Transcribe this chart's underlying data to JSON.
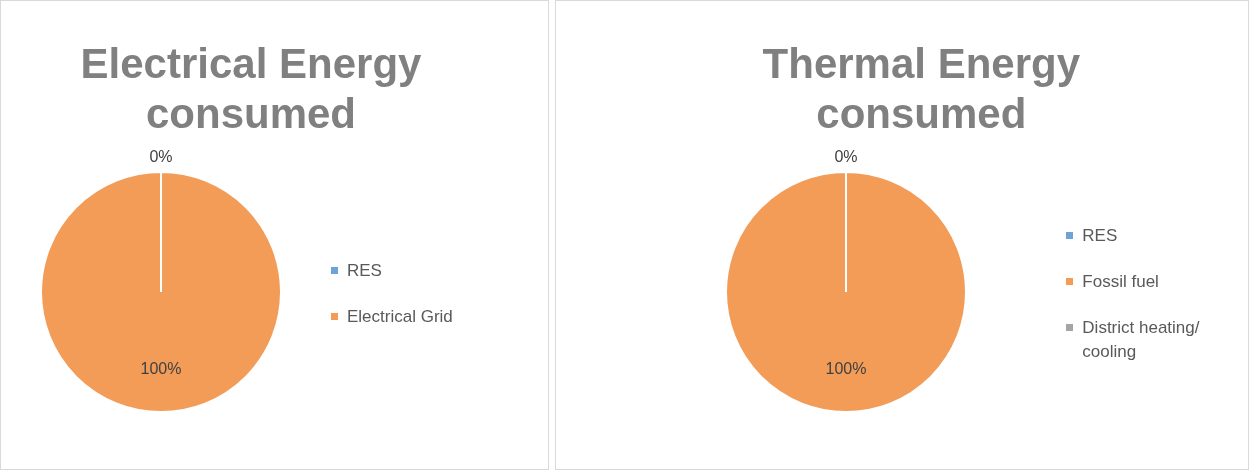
{
  "chart_data": [
    {
      "type": "pie",
      "title": "Electrical Energy consumed",
      "categories": [
        "RES",
        "Electrical Grid"
      ],
      "values": [
        0,
        100
      ],
      "colors": [
        "#6fa3d8",
        "#f29c58"
      ],
      "value_labels": [
        "0%",
        "100%"
      ],
      "legend": "right"
    },
    {
      "type": "pie",
      "title": "Thermal Energy consumed",
      "categories": [
        "RES",
        "Fossil fuel",
        "District heating/ cooling"
      ],
      "values": [
        0,
        100,
        0
      ],
      "colors": [
        "#6fa3d8",
        "#f29c58",
        "#a5a5a5"
      ],
      "value_labels": [
        "0%",
        "100%",
        null
      ],
      "legend": "right"
    }
  ]
}
